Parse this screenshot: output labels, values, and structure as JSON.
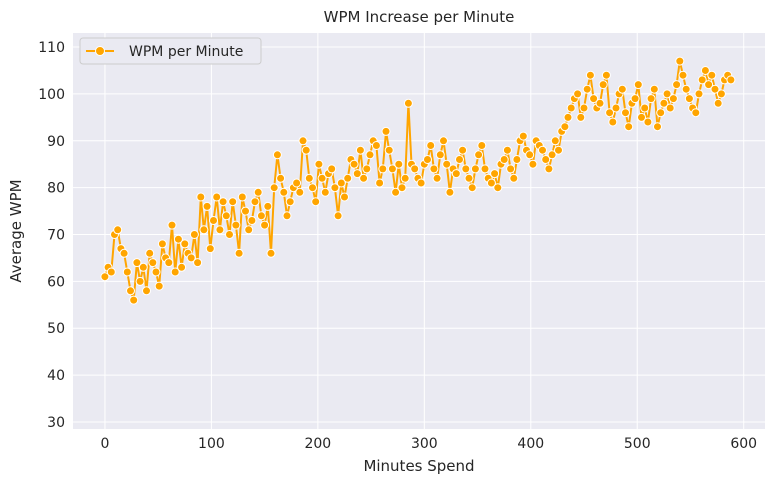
{
  "chart_data": {
    "type": "line",
    "title": "WPM Increase per Minute",
    "xlabel": "Minutes Spend",
    "ylabel": "Average WPM",
    "xlim": [
      -30,
      620
    ],
    "ylim": [
      28.5,
      113
    ],
    "xticks": [
      0,
      100,
      200,
      300,
      400,
      500,
      600
    ],
    "yticks": [
      30,
      40,
      50,
      60,
      70,
      80,
      90,
      100,
      110
    ],
    "grid": true,
    "legend_position": "top-left",
    "background": "#eaeaf2",
    "series": [
      {
        "name": "WPM per Minute",
        "color": "#ffa500",
        "marker": "circle",
        "x": [
          0,
          3,
          6,
          9,
          12,
          15,
          18,
          21,
          24,
          27,
          30,
          33,
          36,
          39,
          42,
          45,
          48,
          51,
          54,
          57,
          60,
          63,
          66,
          69,
          72,
          75,
          78,
          81,
          84,
          87,
          90,
          93,
          96,
          99,
          102,
          105,
          108,
          111,
          114,
          117,
          120,
          123,
          126,
          129,
          132,
          135,
          138,
          141,
          144,
          147,
          150,
          153,
          156,
          159,
          162,
          165,
          168,
          171,
          174,
          177,
          180,
          183,
          186,
          189,
          192,
          195,
          198,
          201,
          204,
          207,
          210,
          213,
          216,
          219,
          222,
          225,
          228,
          231,
          234,
          237,
          240,
          243,
          246,
          249,
          252,
          255,
          258,
          261,
          264,
          267,
          270,
          273,
          276,
          279,
          282,
          285,
          288,
          291,
          294,
          297,
          300,
          303,
          306,
          309,
          312,
          315,
          318,
          321,
          324,
          327,
          330,
          333,
          336,
          339,
          342,
          345,
          348,
          351,
          354,
          357,
          360,
          363,
          366,
          369,
          372,
          375,
          378,
          381,
          384,
          387,
          390,
          393,
          396,
          399,
          402,
          405,
          408,
          411,
          414,
          417,
          420,
          423,
          426,
          429,
          432,
          435,
          438,
          441,
          444,
          447,
          450,
          453,
          456,
          459,
          462,
          465,
          468,
          471,
          474,
          477,
          480,
          483,
          486,
          489,
          492,
          495,
          498,
          501,
          504,
          507,
          510,
          513,
          516,
          519,
          522,
          525,
          528,
          531,
          534,
          537,
          540,
          543,
          546,
          549,
          552,
          555,
          558,
          561,
          564,
          567,
          570,
          573,
          576,
          579,
          582,
          585,
          588
        ],
        "y": [
          61,
          63,
          62,
          70,
          71,
          67,
          66,
          62,
          58,
          56,
          64,
          60,
          63,
          58,
          66,
          64,
          62,
          59,
          68,
          65,
          64,
          72,
          62,
          69,
          63,
          68,
          66,
          65,
          70,
          64,
          78,
          71,
          76,
          67,
          73,
          78,
          71,
          77,
          74,
          70,
          77,
          72,
          66,
          78,
          75,
          71,
          73,
          77,
          79,
          74,
          72,
          76,
          66,
          80,
          87,
          82,
          79,
          74,
          77,
          80,
          81,
          79,
          90,
          88,
          82,
          80,
          77,
          85,
          82,
          79,
          83,
          84,
          80,
          74,
          81,
          78,
          82,
          86,
          85,
          83,
          88,
          82,
          84,
          87,
          90,
          89,
          81,
          84,
          92,
          88,
          84,
          79,
          85,
          80,
          82,
          98,
          85,
          84,
          82,
          81,
          85,
          86,
          89,
          84,
          82,
          87,
          90,
          85,
          79,
          84,
          83,
          86,
          88,
          84,
          82,
          80,
          84,
          87,
          89,
          84,
          82,
          81,
          83,
          80,
          85,
          86,
          88,
          84,
          82,
          86,
          90,
          91,
          88,
          87,
          85,
          90,
          89,
          88,
          86,
          84,
          87,
          90,
          88,
          92,
          93,
          95,
          97,
          99,
          100,
          95,
          97,
          101,
          104,
          99,
          97,
          98,
          102,
          104,
          96,
          94,
          97,
          100,
          101,
          96,
          93,
          98,
          99,
          102,
          95,
          97,
          94,
          99,
          101,
          93,
          96,
          98,
          100,
          97,
          99,
          102,
          107,
          104,
          101,
          99,
          97,
          96,
          100,
          103,
          105,
          102,
          104,
          101,
          98,
          100,
          103,
          104,
          103
        ]
      }
    ]
  }
}
